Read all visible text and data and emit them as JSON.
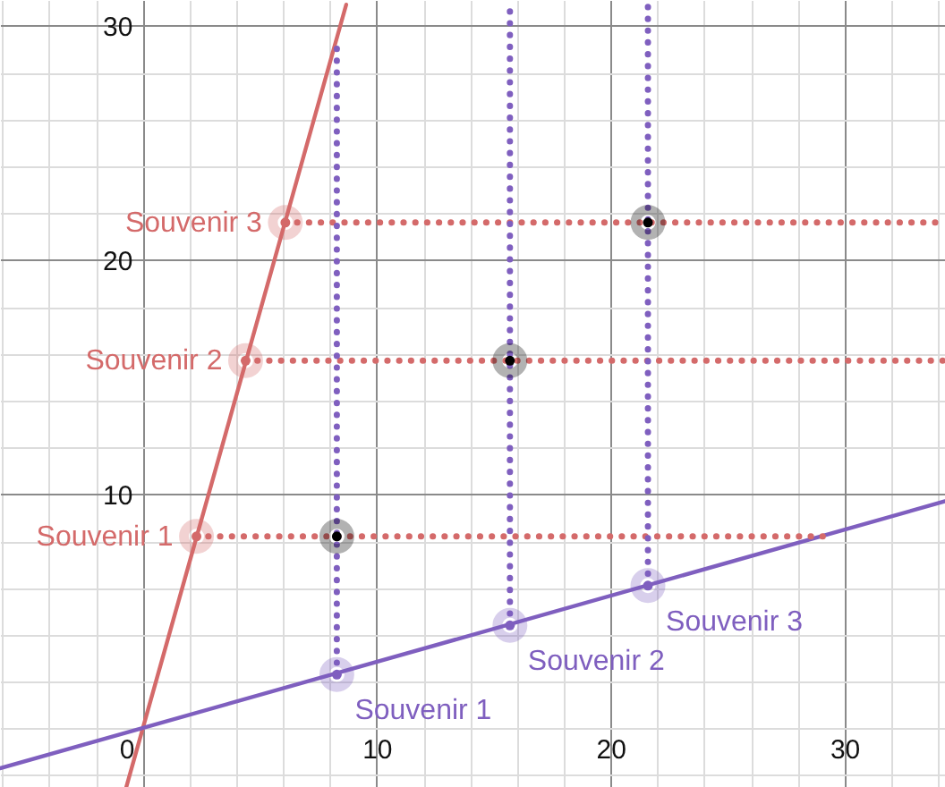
{
  "chart_data": {
    "type": "line",
    "xlim": [
      -6.1,
      34.3
    ],
    "ylim": [
      -2.5,
      31.1
    ],
    "xticks": [
      {
        "value": -6,
        "label": null
      },
      {
        "value": -4,
        "label": null
      },
      {
        "value": -2,
        "label": null
      },
      0,
      {
        "value": 2,
        "label": null
      },
      {
        "value": 4,
        "label": null
      },
      {
        "value": 6,
        "label": null
      },
      {
        "value": 8,
        "label": null
      },
      10,
      {
        "value": 12,
        "label": null
      },
      {
        "value": 14,
        "label": null
      },
      {
        "value": 16,
        "label": null
      },
      {
        "value": 18,
        "label": null
      },
      20,
      {
        "value": 22,
        "label": null
      },
      {
        "value": 24,
        "label": null
      },
      {
        "value": 26,
        "label": null
      },
      {
        "value": 28,
        "label": null
      },
      30,
      {
        "value": 32,
        "label": null
      },
      {
        "value": 34,
        "label": null
      }
    ],
    "yticks": [
      {
        "value": -2,
        "label": null
      },
      {
        "value": 0,
        "label": null
      },
      {
        "value": 2,
        "label": null
      },
      {
        "value": 4,
        "label": null
      },
      {
        "value": 6,
        "label": null
      },
      {
        "value": 8,
        "label": null
      },
      10,
      {
        "value": 12,
        "label": null
      },
      {
        "value": 14,
        "label": null
      },
      {
        "value": 16,
        "label": null
      },
      {
        "value": 18,
        "label": null
      },
      20,
      {
        "value": 22,
        "label": null
      },
      {
        "value": 24,
        "label": null
      },
      {
        "value": 26,
        "label": null
      },
      {
        "value": 28,
        "label": null
      },
      30
    ],
    "grid": true,
    "line_style": "solid",
    "series": [
      {
        "color": "#d46a6a",
        "x": [
          -0.7,
          8.7
        ],
        "values": [
          -2.5,
          30.9
        ]
      },
      {
        "color": "#7f5fbf",
        "x": [
          -6.1,
          34.3
        ],
        "values": [
          -1.7,
          9.7
        ]
      },
      {
        "type": "line",
        "color": "#d46a6a",
        "line_style": "dotted",
        "x": [
          2.3,
          29.1
        ],
        "values": [
          8.2,
          8.2
        ]
      },
      {
        "type": "line",
        "color": "#d46a6a",
        "line_style": "dotted",
        "x": [
          4.4,
          34.3
        ],
        "values": [
          15.7,
          15.7
        ]
      },
      {
        "type": "line",
        "color": "#d46a6a",
        "line_style": "dotted",
        "x": [
          6.1,
          34.3
        ],
        "values": [
          21.6,
          21.6
        ]
      },
      {
        "type": "line",
        "color": "#7f5fbf",
        "line_style": "dotted",
        "x": [
          8.3,
          8.3
        ],
        "values": [
          2.3,
          29.1
        ]
      },
      {
        "type": "line",
        "color": "#7f5fbf",
        "line_style": "dotted",
        "x": [
          15.7,
          15.7
        ],
        "values": [
          4.4,
          31.1
        ]
      },
      {
        "type": "line",
        "color": "#7f5fbf",
        "line_style": "dotted",
        "x": [
          21.6,
          21.6
        ],
        "values": [
          6.1,
          31.1
        ]
      },
      {
        "type": "scatter",
        "marker": "circle",
        "color": "#d46a6a",
        "x": [
          2.3,
          4.4,
          6.1
        ],
        "values": [
          8.2,
          15.7,
          21.6
        ]
      },
      {
        "type": "scatter",
        "marker": "circle",
        "color": "#7f5fbf",
        "x": [
          8.3,
          15.7,
          21.6
        ],
        "values": [
          2.3,
          4.4,
          6.1
        ]
      },
      {
        "type": "scatter",
        "marker": "circle",
        "color": "#000000",
        "x": [
          8.3,
          15.7,
          21.6
        ],
        "values": [
          8.2,
          15.7,
          21.6
        ]
      }
    ],
    "annotations": [
      {
        "text": "Souvenir 1",
        "x": 2.3,
        "y": 8.2
      },
      {
        "text": "Souvenir 2",
        "x": 4.4,
        "y": 15.7
      },
      {
        "text": "Souvenir 3",
        "x": 6.1,
        "y": 21.6
      },
      {
        "text": "Souvenir 1",
        "x": 8.3,
        "y": 2.3
      },
      {
        "text": "Souvenir 2",
        "x": 15.7,
        "y": 4.4
      },
      {
        "text": "Souvenir 3",
        "x": 21.6,
        "y": 6.1
      }
    ]
  }
}
